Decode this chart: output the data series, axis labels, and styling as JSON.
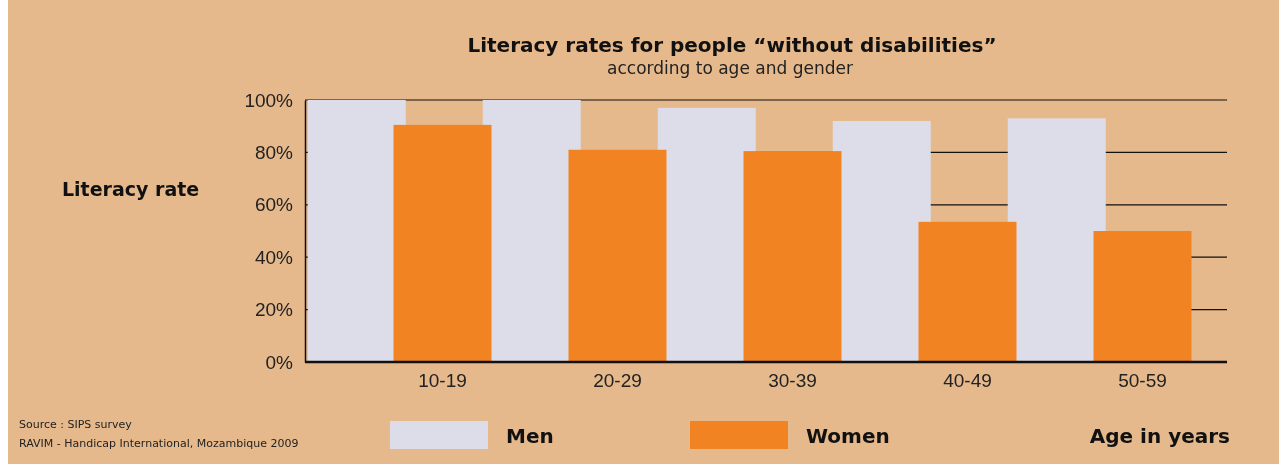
{
  "chart_data": {
    "type": "bar",
    "title": "Literacy rates for people “without disabilities”",
    "subtitle": "according to age and gender",
    "ylabel": "Literacy rate",
    "xlabel": "Age in years",
    "categories": [
      "10-19",
      "20-29",
      "30-39",
      "40-49",
      "50-59"
    ],
    "series": [
      {
        "name": "Men",
        "color": "#dcdde8",
        "values": [
          100,
          100,
          97,
          92,
          93
        ]
      },
      {
        "name": "Women",
        "color": "#f28322",
        "values": [
          90.5,
          81,
          80.5,
          53.5,
          50
        ]
      }
    ],
    "ylim": [
      0,
      100
    ],
    "yticks": [
      {
        "value": 0,
        "label": "0%"
      },
      {
        "value": 20,
        "label": "20%"
      },
      {
        "value": 40,
        "label": "40%"
      },
      {
        "value": 60,
        "label": "60%"
      },
      {
        "value": 80,
        "label": "80%"
      },
      {
        "value": 100,
        "label": "100%"
      }
    ],
    "grid": "y",
    "legend": "bottom",
    "annotations": [
      "Source : SIPS survey",
      "RAVIM - Handicap International, Mozambique 2009"
    ]
  }
}
